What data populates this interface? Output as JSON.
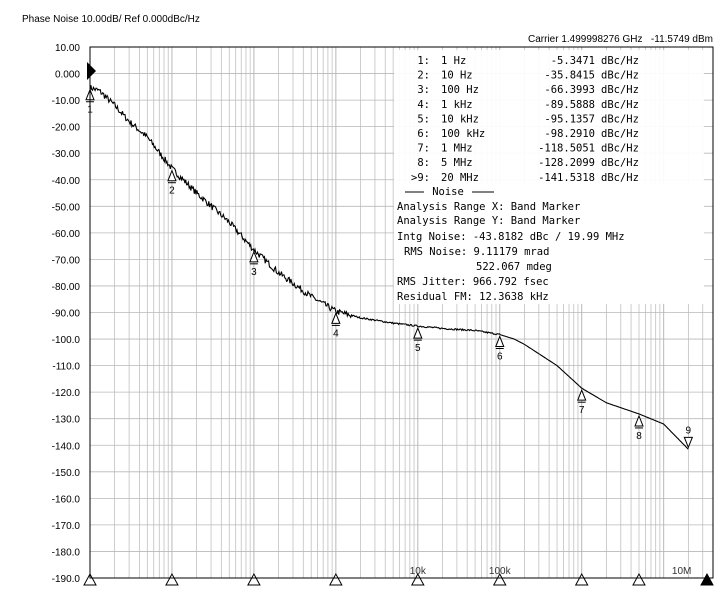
{
  "header": {
    "title": "Phase Noise 10.00dB/ Ref 0.000dBc/Hz",
    "carrier": "Carrier 1.499998276 GHz",
    "carrier_level": "-11.5749 dBm"
  },
  "chart_data": {
    "type": "line",
    "title": "Phase Noise 10.00dB/ Ref 0.000dBc/Hz",
    "x_scale": "log",
    "xlim": [
      1,
      40000000
    ],
    "ylim": [
      -190,
      10
    ],
    "grid": true,
    "y_ticks": [
      "10.00",
      "0.000",
      "-10.00",
      "-20.00",
      "-30.00",
      "-40.00",
      "-50.00",
      "-60.00",
      "-70.00",
      "-80.00",
      "-90.00",
      "-100.0",
      "-110.0",
      "-120.0",
      "-130.0",
      "-140.0",
      "-150.0",
      "-160.0",
      "-170.0",
      "-180.0",
      "-190.0"
    ],
    "x_tick_labels": [
      {
        "x": 10000,
        "text": "10k"
      },
      {
        "x": 100000,
        "text": "100k"
      },
      {
        "x": 10000000,
        "text": "10M"
      }
    ],
    "series": [
      {
        "x": [
          1,
          1.3,
          2,
          3,
          5,
          10,
          20,
          50,
          100,
          200,
          500,
          1000,
          2000,
          5000,
          10000,
          20000,
          50000,
          100000,
          150000,
          200000,
          500000,
          1000000,
          2000000,
          5000000,
          10000000,
          20000000
        ],
        "y": [
          -5.3,
          -6.5,
          -12,
          -18,
          -24,
          -35.8,
          -45,
          -56,
          -66.4,
          -75,
          -84,
          -89.6,
          -92,
          -94,
          -95.1,
          -96,
          -96.8,
          -98.3,
          -100,
          -102,
          -110,
          -118.5,
          -124,
          -128.2,
          -132,
          -141.5
        ]
      }
    ],
    "markers": [
      {
        "id": "1",
        "x": 1,
        "y": -5.3471
      },
      {
        "id": "2",
        "x": 10,
        "y": -35.8415
      },
      {
        "id": "3",
        "x": 100,
        "y": -66.3993
      },
      {
        "id": "4",
        "x": 1000,
        "y": -89.5888
      },
      {
        "id": "5",
        "x": 10000,
        "y": -95.1357
      },
      {
        "id": "6",
        "x": 100000,
        "y": -98.291
      },
      {
        "id": "7",
        "x": 1000000,
        "y": -118.5051
      },
      {
        "id": "8",
        "x": 5000000,
        "y": -128.2099
      },
      {
        "id": "9",
        "x": 20000000,
        "y": -141.5318
      }
    ],
    "bottom_triangles": [
      1,
      10,
      100,
      1000,
      10000,
      100000,
      1000000,
      5000000
    ]
  },
  "marker_table": [
    {
      "num": "1:",
      "freq": "1 Hz",
      "value": "-5.3471",
      "unit": "dBc/Hz"
    },
    {
      "num": "2:",
      "freq": "10 Hz",
      "value": "-35.8415",
      "unit": "dBc/Hz"
    },
    {
      "num": "3:",
      "freq": "100 Hz",
      "value": "-66.3993",
      "unit": "dBc/Hz"
    },
    {
      "num": "4:",
      "freq": "1 kHz",
      "value": "-89.5888",
      "unit": "dBc/Hz"
    },
    {
      "num": "5:",
      "freq": "10 kHz",
      "value": "-95.1357",
      "unit": "dBc/Hz"
    },
    {
      "num": "6:",
      "freq": "100 kHz",
      "value": "-98.2910",
      "unit": "dBc/Hz"
    },
    {
      "num": "7:",
      "freq": "1 MHz",
      "value": "-118.5051",
      "unit": "dBc/Hz"
    },
    {
      "num": "8:",
      "freq": "5 MHz",
      "value": "-128.2099",
      "unit": "dBc/Hz"
    },
    {
      "num": ">9:",
      "freq": "20 MHz",
      "value": "-141.5318",
      "unit": "dBc/Hz"
    }
  ],
  "noise_block": {
    "header": "Noise",
    "range_x": "Analysis Range X: Band Marker",
    "range_y": "Analysis Range Y: Band Marker",
    "intg_noise": "Intg Noise: -43.8182 dBc / 19.99 MHz",
    "rms_noise_rad": "RMS Noise: 9.11179 mrad",
    "rms_noise_deg": "522.067 mdeg",
    "rms_jitter": "RMS Jitter: 966.792 fsec",
    "residual_fm": "Residual FM: 12.3638 kHz"
  },
  "colors": {
    "grid": "#b8b8b8",
    "trace": "#000000",
    "text": "#000000"
  }
}
